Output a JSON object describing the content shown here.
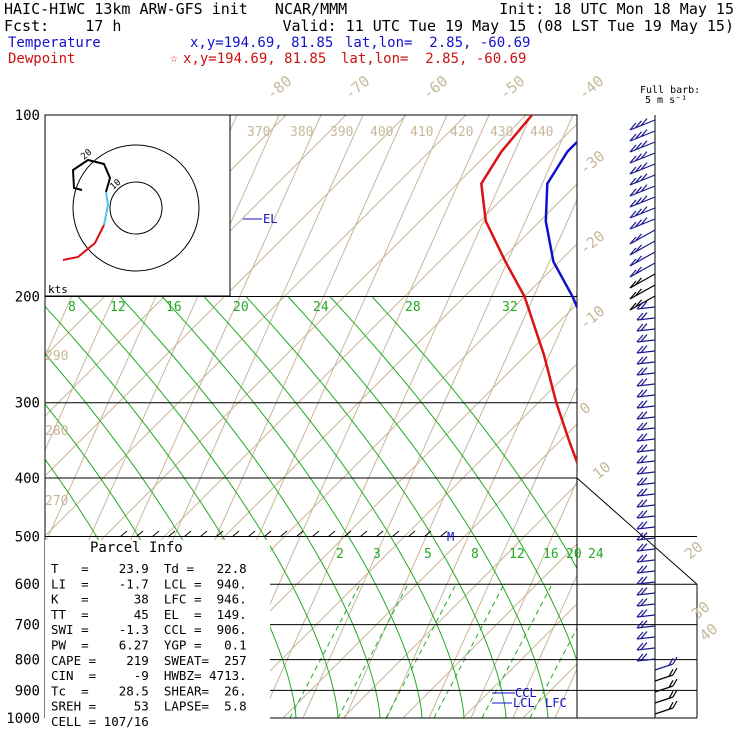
{
  "header": {
    "line1_left": "HAIC-HIWC 13km ARW-GFS init   NCAR/MMM",
    "line1_right": "Init: 18 UTC Mon 18 May 15",
    "line2_left": "Fcst:    17 h",
    "line2_right": "Valid: 11 UTC Tue 19 May 15 (08 LST Tue 19 May 15)",
    "temp_label": "Temperature",
    "temp_xy": "x,y=194.69, 81.85",
    "temp_latlon": "lat,lon=  2.85, -60.69",
    "dew_label": "Dewpoint",
    "dew_xy": "x,y=194.69, 81.85",
    "dew_latlon": "lat,lon=  2.85, -60.69",
    "dew_star": "☆",
    "barb_title": "Full barb:",
    "barb_unit": "5 m s⁻¹"
  },
  "colors": {
    "temperature": "#1111cc",
    "dewpoint": "#dd1111",
    "isotherm": "#c8b89a",
    "mixing_ratio": "#22aa22",
    "isobar": "#000000"
  },
  "hodograph": {
    "label": "kts",
    "rings": [
      10,
      20
    ],
    "ring_label": "20",
    "ring_label2": "10"
  },
  "parcel": {
    "title": "Parcel Info",
    "rows": [
      "T   =    23.9  Td =   22.8",
      "LI  =    -1.7  LCL =  940.",
      "K   =      38  LFC =  946.",
      "TT  =      45  EL  =  149.",
      "SWI =    -1.3  CCL =  906.",
      "PW  =    6.27  YGP =   0.1",
      "CAPE =    219  SWEAT=  257",
      "CIN  =     -9  HWBZ= 4713.",
      "Tc  =    28.5  SHEAR=  26.",
      "SREH =     53  LAPSE=  5.8",
      "CELL = 107/16"
    ]
  },
  "chart_data": {
    "type": "line",
    "title": "",
    "pressure_levels": [
      100,
      200,
      300,
      400,
      500,
      600,
      700,
      800,
      900,
      1000
    ],
    "pressure_labels": [
      "100",
      "200",
      "300",
      "400",
      "500",
      "600",
      "700",
      "800",
      "900",
      "1000"
    ],
    "isotherm_labels": [
      "-80",
      "-70",
      "-60",
      "-50",
      "-40",
      "-30",
      "-20",
      "-10",
      "0",
      "10",
      "20",
      "30",
      "40"
    ],
    "theta_labels": [
      "370",
      "380",
      "390",
      "400",
      "410",
      "420",
      "430",
      "440",
      "290",
      "280",
      "270"
    ],
    "mixing_ratio_upper": [
      "8",
      "12",
      "16",
      "20",
      "24",
      "28",
      "32"
    ],
    "mixing_ratio_lower": [
      "2",
      "3",
      "5",
      "8",
      "12",
      "16",
      "20",
      "24"
    ],
    "level_markers": {
      "el": "EL",
      "ccl": "CCL",
      "lcl": "LCL",
      "lfc": "LFC",
      "m": "M"
    },
    "series": [
      {
        "name": "Temperature",
        "points": [
          [
            1000,
            23.9
          ],
          [
            950,
            21.5
          ],
          [
            900,
            19.0
          ],
          [
            850,
            16.5
          ],
          [
            800,
            14.0
          ],
          [
            700,
            8.5
          ],
          [
            600,
            3.0
          ],
          [
            550,
            0.0
          ],
          [
            500,
            -4.5
          ],
          [
            450,
            -9.0
          ],
          [
            400,
            -14.0
          ],
          [
            350,
            -20.5
          ],
          [
            300,
            -28.0
          ],
          [
            250,
            -38.0
          ],
          [
            200,
            -52.0
          ],
          [
            175,
            -61.0
          ],
          [
            150,
            -69.0
          ],
          [
            130,
            -75.0
          ],
          [
            115,
            -77.0
          ],
          [
            100,
            -77.0
          ]
        ]
      },
      {
        "name": "Dewpoint",
        "points": [
          [
            1000,
            22.8
          ],
          [
            950,
            19.5
          ],
          [
            900,
            17.0
          ],
          [
            850,
            14.0
          ],
          [
            800,
            11.5
          ],
          [
            700,
            5.0
          ],
          [
            600,
            1.5
          ],
          [
            550,
            -1.0
          ],
          [
            500,
            -6.5
          ],
          [
            450,
            -12.0
          ],
          [
            400,
            -20.0
          ],
          [
            350,
            -28.0
          ],
          [
            300,
            -37.0
          ],
          [
            250,
            -47.0
          ],
          [
            200,
            -60.0
          ],
          [
            175,
            -69.0
          ],
          [
            150,
            -79.0
          ],
          [
            130,
            -86.0
          ],
          [
            115,
            -88.0
          ],
          [
            100,
            -89.0
          ]
        ]
      }
    ]
  }
}
